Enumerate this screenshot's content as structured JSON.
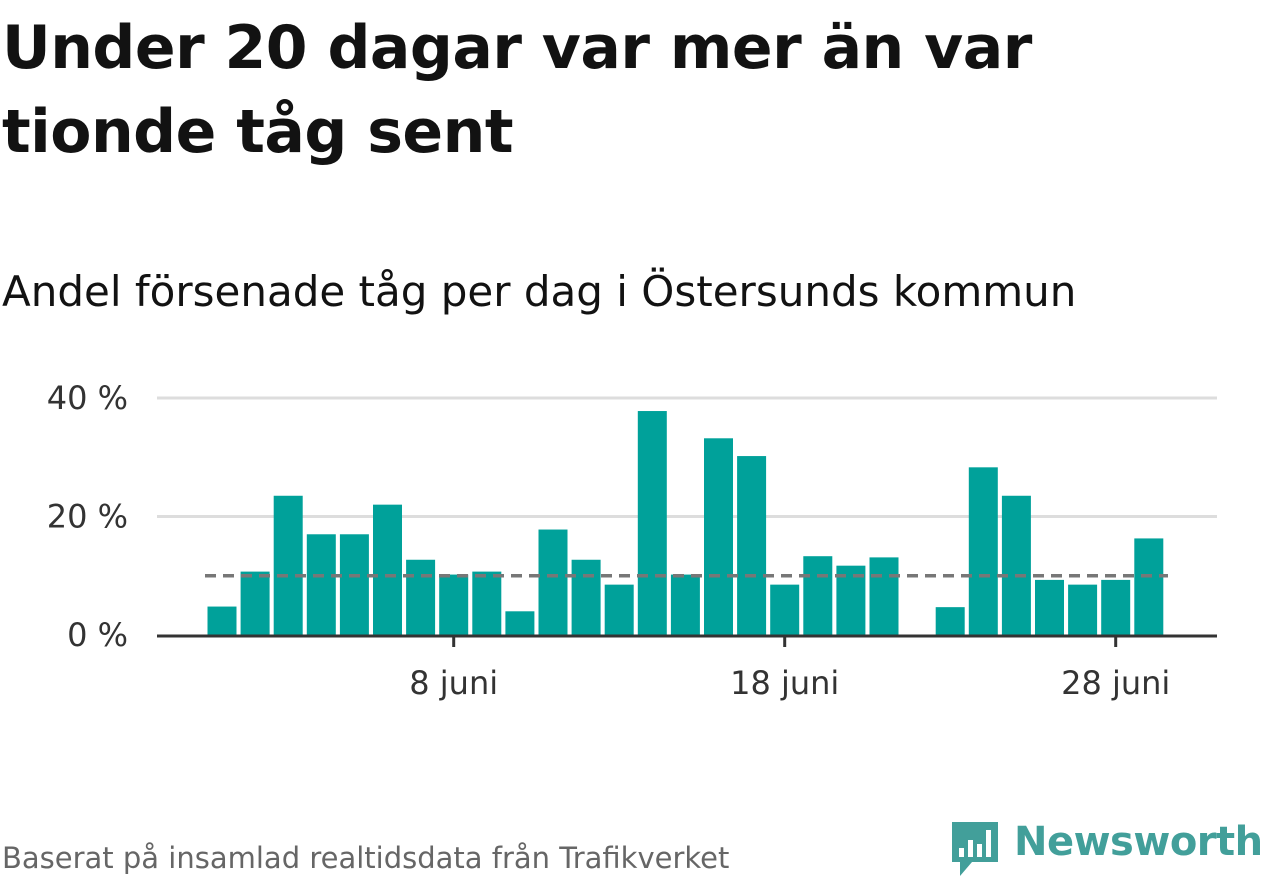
{
  "title": "Under 20 dagar var mer än var tionde tåg sent",
  "subtitle": "Andel försenade tåg per dag i Östersunds kommun",
  "source": "Baserat på insamlad realtidsdata från Trafikverket",
  "logo": {
    "text": "Newsworthy",
    "icon": "chart-speech-bubble-icon"
  },
  "colors": {
    "bar": "#00a19a",
    "grid": "#dddddd",
    "axis": "#333333",
    "reference_line": "#777777",
    "logo": "#429f9a"
  },
  "chart_data": {
    "type": "bar",
    "x": [
      1,
      2,
      3,
      4,
      5,
      6,
      7,
      8,
      9,
      10,
      11,
      12,
      13,
      14,
      15,
      16,
      17,
      18,
      19,
      20,
      21,
      22,
      23,
      24,
      25,
      26,
      27,
      28,
      29,
      30
    ],
    "values": [
      4.8,
      10.7,
      23.5,
      17.0,
      17.0,
      22.0,
      12.7,
      10.2,
      10.7,
      4.0,
      17.8,
      12.7,
      8.5,
      37.8,
      10.2,
      33.2,
      30.2,
      8.5,
      13.3,
      11.7,
      13.1,
      null,
      4.7,
      28.3,
      23.5,
      9.3,
      8.5,
      9.3,
      16.3,
      null
    ],
    "reference_line": 10,
    "ylim": [
      0,
      40
    ],
    "y_ticks": [
      {
        "value": 0,
        "label": "0 %"
      },
      {
        "value": 20,
        "label": "20 %"
      },
      {
        "value": 40,
        "label": "40 %"
      }
    ],
    "x_ticks": [
      {
        "value": 8,
        "label": "8 juni"
      },
      {
        "value": 18,
        "label": "18 juni"
      },
      {
        "value": 28,
        "label": "28 juni"
      }
    ],
    "grid": true,
    "xlabel": "",
    "ylabel": ""
  }
}
